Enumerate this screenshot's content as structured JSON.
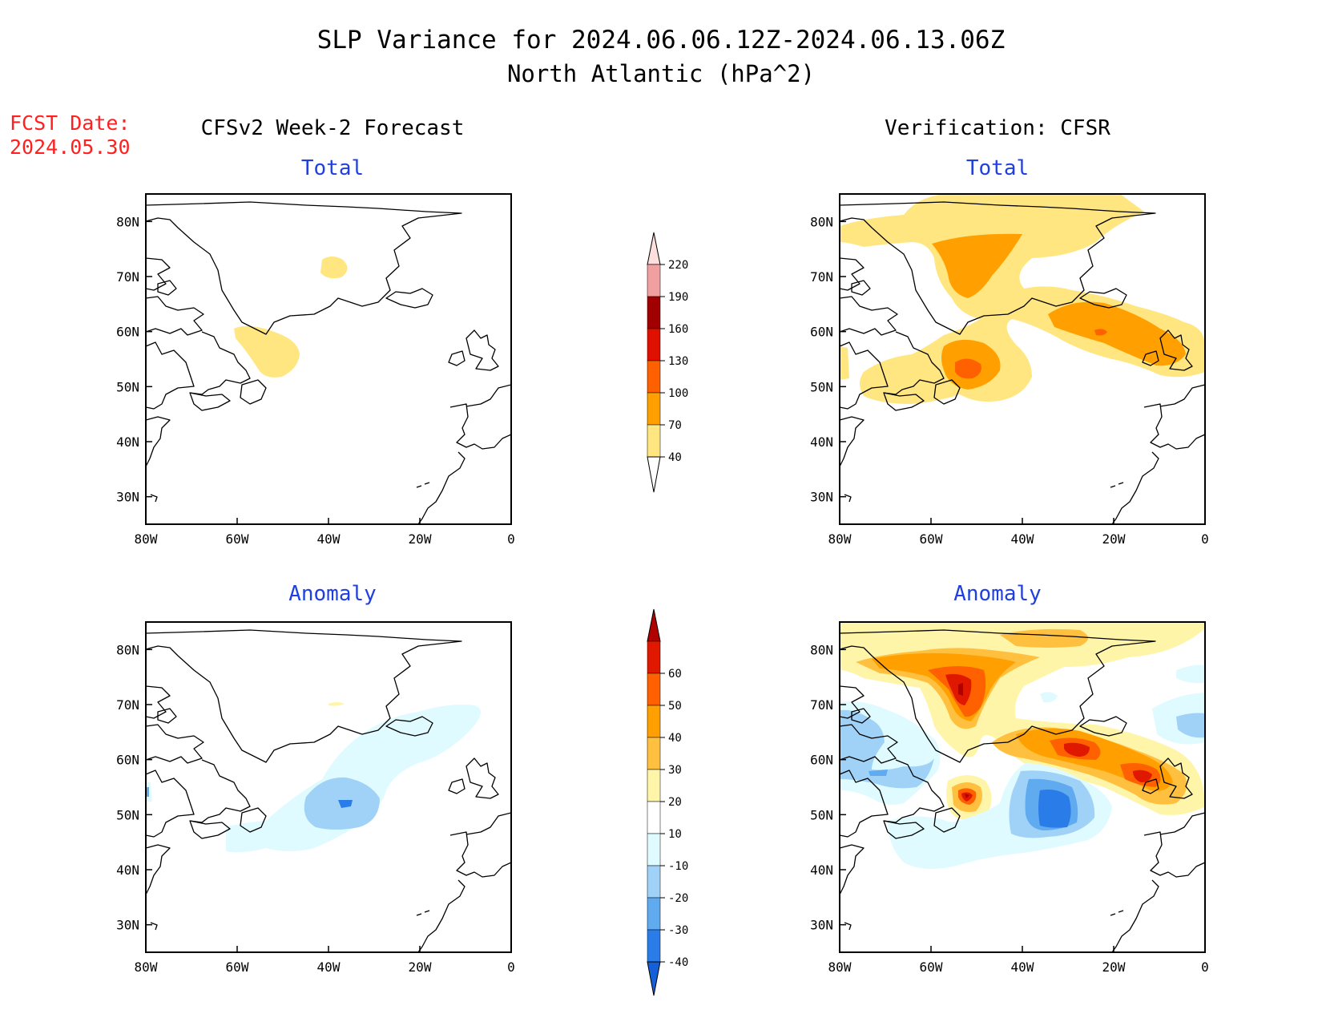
{
  "title_line1": "SLP Variance for 2024.06.06.12Z-2024.06.13.06Z",
  "title_line2": "North Atlantic (hPa^2)",
  "fcst_date_label": "FCST Date:",
  "fcst_date_value": "2024.05.30",
  "left_column_title": "CFSv2 Week-2 Forecast",
  "right_column_title": "Verification: CFSR",
  "panel_total_label": "Total",
  "panel_anomaly_label": "Anomaly",
  "map": {
    "lon_range": [
      -80,
      0
    ],
    "lat_range": [
      25,
      85
    ],
    "lon_ticks": [
      "80W",
      "60W",
      "40W",
      "20W",
      "0"
    ],
    "lat_ticks": [
      "80N",
      "70N",
      "60N",
      "50N",
      "40N",
      "30N"
    ]
  },
  "colorbar_total": {
    "levels": [
      "40",
      "70",
      "100",
      "130",
      "160",
      "190",
      "220"
    ],
    "colors": [
      "#ffe680",
      "#ffa000",
      "#ff6000",
      "#e01000",
      "#a00000",
      "#f0a0a0",
      "#fde0dd"
    ]
  },
  "colorbar_anomaly": {
    "levels": [
      "60",
      "50",
      "40",
      "30",
      "20",
      "10",
      "-10",
      "-20",
      "-30",
      "-40"
    ],
    "colors": [
      "#b00000",
      "#e01800",
      "#ff6000",
      "#ffa000",
      "#ffc040",
      "#fff5a8",
      "#ffffff",
      "#e0fbff",
      "#a0d2f8",
      "#60aaf0",
      "#2a7de8",
      "#1560d8"
    ]
  },
  "chart_data": [
    {
      "type": "heatmap",
      "panel": "CFSv2 Week-2 Forecast - Total",
      "regions": [
        {
          "center_lon": -38,
          "center_lat": 72,
          "range": "40-70"
        },
        {
          "center_lon": -50,
          "center_lat": 57,
          "range": "40-70"
        }
      ]
    },
    {
      "type": "heatmap",
      "panel": "Verification: CFSR - Total",
      "regions": [
        {
          "center_lon": -45,
          "center_lat": 73,
          "range": "70-100"
        },
        {
          "center_lon": -50,
          "center_lat": 53,
          "range": "100-130"
        },
        {
          "center_lon": -22,
          "center_lat": 60,
          "range": "100-130"
        }
      ]
    },
    {
      "type": "heatmap",
      "panel": "CFSv2 Week-2 Forecast - Anomaly",
      "regions": [
        {
          "center_lon": -37,
          "center_lat": 52,
          "range": "-40 to -30"
        },
        {
          "center_lon": -33,
          "center_lat": 58,
          "range": "-20 to -10"
        }
      ]
    },
    {
      "type": "heatmap",
      "panel": "Verification: CFSR - Anomaly",
      "regions": [
        {
          "center_lon": -50,
          "center_lat": 73,
          "range": ">60"
        },
        {
          "center_lon": -50,
          "center_lat": 53,
          "range": ">60"
        },
        {
          "center_lon": -22,
          "center_lat": 61,
          "range": "50-60"
        },
        {
          "center_lon": -30,
          "center_lat": 48,
          "range": "-40 to -30"
        },
        {
          "center_lon": -72,
          "center_lat": 57,
          "range": "-30 to -20"
        }
      ]
    }
  ]
}
